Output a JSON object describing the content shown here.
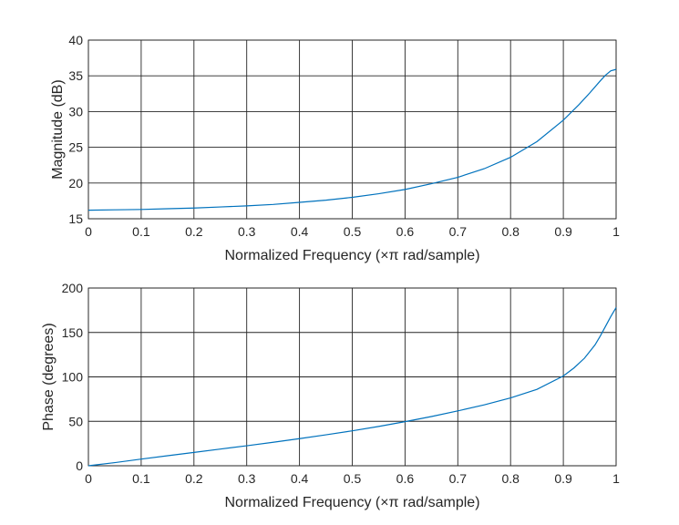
{
  "colors": {
    "line": "#0072bd",
    "axis": "#262626"
  },
  "chart_data": [
    {
      "type": "line",
      "xlabel": "Normalized Frequency  (×π rad/sample)",
      "ylabel": "Magnitude (dB)",
      "xlim": [
        0,
        1
      ],
      "ylim": [
        15,
        40
      ],
      "xticks": [
        "0",
        "0.1",
        "0.2",
        "0.3",
        "0.4",
        "0.5",
        "0.6",
        "0.7",
        "0.8",
        "0.9",
        "1"
      ],
      "yticks": [
        "15",
        "20",
        "25",
        "30",
        "35",
        "40"
      ],
      "grid": true,
      "series": [
        {
          "x": [
            0,
            0.05,
            0.1,
            0.15,
            0.2,
            0.25,
            0.3,
            0.35,
            0.4,
            0.45,
            0.5,
            0.55,
            0.6,
            0.65,
            0.7,
            0.75,
            0.8,
            0.85,
            0.9,
            0.93,
            0.95,
            0.97,
            0.98,
            0.99,
            1.0
          ],
          "y": [
            16.2,
            16.25,
            16.3,
            16.4,
            16.5,
            16.65,
            16.8,
            17.0,
            17.3,
            17.6,
            18.0,
            18.5,
            19.1,
            19.9,
            20.8,
            22.0,
            23.6,
            25.8,
            28.8,
            31.0,
            32.6,
            34.3,
            35.1,
            35.7,
            35.9
          ]
        }
      ]
    },
    {
      "type": "line",
      "xlabel": "Normalized Frequency  (×π rad/sample)",
      "ylabel": "Phase (degrees)",
      "xlim": [
        0,
        1
      ],
      "ylim": [
        0,
        200
      ],
      "xticks": [
        "0",
        "0.1",
        "0.2",
        "0.3",
        "0.4",
        "0.5",
        "0.6",
        "0.7",
        "0.8",
        "0.9",
        "1"
      ],
      "yticks": [
        "0",
        "50",
        "100",
        "150",
        "200"
      ],
      "grid": true,
      "series": [
        {
          "x": [
            0,
            0.05,
            0.1,
            0.15,
            0.2,
            0.25,
            0.3,
            0.35,
            0.4,
            0.45,
            0.5,
            0.55,
            0.6,
            0.65,
            0.7,
            0.75,
            0.8,
            0.85,
            0.9,
            0.92,
            0.94,
            0.96,
            0.97,
            0.98,
            0.99,
            1.0
          ],
          "y": [
            0,
            3.5,
            7.5,
            11.3,
            15.0,
            18.8,
            22.5,
            26.4,
            30.5,
            34.8,
            39.3,
            44.2,
            49.6,
            55.4,
            61.7,
            68.5,
            76.3,
            86.0,
            101.0,
            110.0,
            121.0,
            136.0,
            146.0,
            157.0,
            168.0,
            178.0
          ]
        }
      ]
    }
  ]
}
